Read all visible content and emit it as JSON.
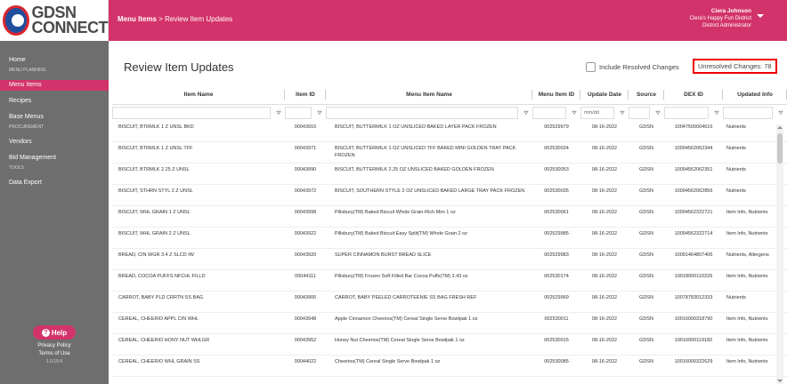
{
  "logo": {
    "line1": "GDSN",
    "line2": "CONNECT"
  },
  "sidebar": {
    "home": "Home",
    "section_menu_planning": "MENU PLANNING",
    "menu_items": "Menu Items",
    "recipes": "Recipes",
    "base_menus": "Base Menus",
    "section_procurement": "PROCUREMENT",
    "vendors": "Vendors",
    "bid_management": "Bid Management",
    "section_tools": "TOOLS",
    "data_export": "Data Export",
    "help": "Help",
    "privacy": "Privacy Policy",
    "terms": "Terms of Use",
    "version": "1.0.19.4"
  },
  "header": {
    "crumb_root": "Menu Items",
    "crumb_sep": " > ",
    "crumb_page": "Review Item Updates",
    "user_name": "Ciera Johnson",
    "user_org": "Ciera's Happy Fun District",
    "user_role": "District Administrator"
  },
  "main": {
    "title": "Review Item Updates",
    "include_resolved": "Include Resolved Changes",
    "unresolved": "Unresolved Changes: 78"
  },
  "table": {
    "columns": [
      "Item Name",
      "Item ID",
      "Menu Item Name",
      "Menu Item ID",
      "Update Date",
      "Source",
      "DEX ID",
      "Updated Info"
    ],
    "date_placeholder": "mm/dd",
    "rows": [
      [
        "BISCUIT, BTRMLK 1 Z UNSL BKD",
        "00043916",
        "BISCUIT, BUTTERMILK 1 OZ UNSLICED BAKED LAYER PACK FROZEN",
        "002529979",
        "08-16-2022",
        "GDSN",
        "10047500004616",
        "Nutrients"
      ],
      [
        "BISCUIT, BTRMLK 1 Z UNSL TFF",
        "00043971",
        "BISCUIT, BUTTERMILK 1 OZ UNSLICED TFF BAKED MINI GOLDEN TRAY PACK FROZEN",
        "002530034",
        "08-16-2022",
        "GDSN",
        "10094562062344",
        "Nutrients"
      ],
      [
        "BISCUIT, BTRMLK 2.25 Z UNSL",
        "00043990",
        "BISCUIT, BUTTERMILK 2.25 OZ UNSLICED BAKED GOLDEN FROZEN",
        "002530053",
        "08-16-2022",
        "GDSN",
        "10094562062351",
        "Nutrients"
      ],
      [
        "BISCUIT, STHRN STYL 2 Z UNSL",
        "00043972",
        "BISCUIT, SOUTHERN STYLE 2 OZ UNSLICED BAKED LARGE TRAY PACK FROZEN",
        "002530035",
        "08-16-2022",
        "GDSN",
        "10094562062856",
        "Nutrients"
      ],
      [
        "BISCUIT, WHL GRAIN 1 Z UNSL",
        "00043998",
        "Pillsbury(TM) Baked Biscuit Whole Grain-Rich Mini 1 oz",
        "002530061",
        "08-16-2022",
        "GDSN",
        "10094562322721",
        "Item Info, Nutrients"
      ],
      [
        "BISCUIT, WHL GRAIN 2 Z UNSL",
        "00043922",
        "Pillsbury(TM) Baked Biscuit Easy Split(TM) Whole Grain 2 oz",
        "002529985",
        "08-16-2022",
        "GDSN",
        "10094562322714",
        "Item Info, Nutrients"
      ],
      [
        "BREAD, CIN WGR 3.4 Z SLCD IW",
        "00043920",
        "SUPER CINNAMON BURST BREAD SLICE",
        "002529983",
        "08-16-2022",
        "GDSN",
        "10091464807406",
        "Nutrients, Allergens"
      ],
      [
        "BREAD, COCOA PUFFS NFCHL FILLD",
        "00044111",
        "Pillsbury(TM) Frozen Soft Filled Bar Cocoa Puffs(TM) 2.43 oz",
        "002530174",
        "08-16-2022",
        "GDSN",
        "10018000110329",
        "Item Info, Nutrients"
      ],
      [
        "CARROT, BABY PLD CRRTN SS BAG",
        "00043906",
        "CARROT, BABY PEELED CARROTEENIE SS BAG FRESH REF",
        "002529969",
        "08-16-2022",
        "GDSN",
        "10078783012333",
        "Nutrients"
      ],
      [
        "CEREAL, CHEERIO APPL CIN WHL",
        "00043948",
        "Apple Cinnamon Cheerios(TM) Cereal Single Serve Bowlpak 1 oz",
        "002530011",
        "08-16-2022",
        "GDSN",
        "10016000318790",
        "Item Info, Nutrients"
      ],
      [
        "CEREAL, CHEERIO HONY NUT WHLGR",
        "00043952",
        "Honey Nut Cheerios(TM) Cereal Single Serve Bowlpak 1 oz",
        "002530015",
        "08-16-2022",
        "GDSN",
        "10016000119182",
        "Item Info, Nutrients"
      ],
      [
        "CEREAL, CHEERIO WHL GRAIN SS",
        "00044022",
        "Cheerios(TM) Cereal Single Serve Bowlpak 1 oz",
        "002530085",
        "08-16-2022",
        "GDSN",
        "10016000322629",
        "Item Info, Nutrients"
      ]
    ]
  }
}
